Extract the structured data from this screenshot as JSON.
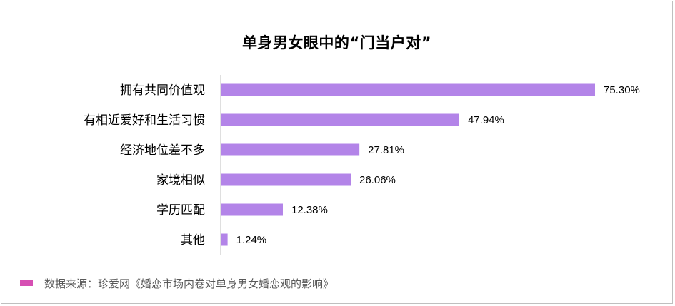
{
  "colors": {
    "bar": "#b384e8",
    "axis": "#bfbfbf",
    "swatch": "#d64fb3"
  },
  "chart_data": {
    "type": "bar",
    "orientation": "horizontal",
    "title": "单身男女眼中的“门当户对”",
    "categories": [
      "拥有共同价值观",
      "有相近爱好和生活习惯",
      "经济地位差不多",
      "家境相似",
      "学历匹配",
      "其他"
    ],
    "values": [
      75.3,
      47.94,
      27.81,
      26.06,
      12.38,
      1.24
    ],
    "value_labels": [
      "75.30%",
      "47.94%",
      "27.81%",
      "26.06%",
      "12.38%",
      "1.24%"
    ],
    "unit": "%",
    "xlim": [
      0,
      75.3
    ],
    "grid": false
  },
  "source": {
    "text": "数据来源：珍爱网《婚恋市场内卷对单身男女婚恋观的影响》"
  }
}
